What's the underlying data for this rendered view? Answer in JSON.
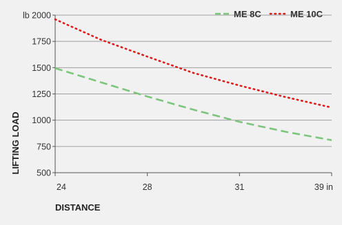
{
  "chart_data": {
    "type": "line",
    "xlabel": "DISTANCE",
    "ylabel": "LIFTING LOAD",
    "x_unit": "in",
    "y_unit": "lb",
    "categories": [
      "24",
      "28",
      "31",
      "39"
    ],
    "yticks": [
      500,
      750,
      1000,
      1250,
      1500,
      1750,
      2000
    ],
    "ylim": [
      500,
      2000
    ],
    "grid": true,
    "legend_position": "top-right",
    "series": [
      {
        "name": "ME 8C",
        "style": "dashed",
        "color": "#7dc47d",
        "points": [
          [
            0,
            1495
          ],
          [
            0.5,
            1360
          ],
          [
            1,
            1225
          ],
          [
            1.5,
            1100
          ],
          [
            2,
            985
          ],
          [
            2.5,
            890
          ],
          [
            3,
            810
          ]
        ]
      },
      {
        "name": "ME 10C",
        "style": "dotted",
        "color": "#dd1b1b",
        "points": [
          [
            0,
            1960
          ],
          [
            0.5,
            1765
          ],
          [
            1,
            1605
          ],
          [
            1.5,
            1450
          ],
          [
            2,
            1330
          ],
          [
            2.5,
            1220
          ],
          [
            3,
            1120
          ]
        ]
      }
    ]
  }
}
